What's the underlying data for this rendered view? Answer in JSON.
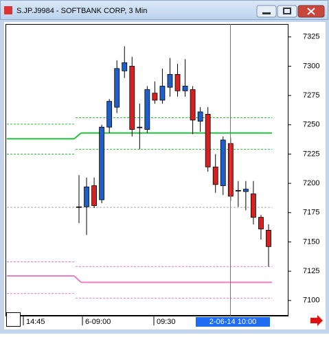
{
  "window": {
    "title": "S.JP.J9984 - SOFTBANK CORP, 3 Min"
  },
  "chart_data": {
    "type": "candlestick",
    "open": [
      7180,
      7180,
      7198,
      7186,
      7248,
      7265,
      7296,
      7300,
      7248,
      7246,
      7277,
      7271,
      7282,
      7293,
      7279,
      7280,
      7253,
      7259,
      7214,
      7198,
      7234,
      7194,
      7193,
      7191,
      7171,
      7160
    ],
    "high": [
      7207,
      7205,
      7205,
      7250,
      7272,
      7305,
      7317,
      7308,
      7268,
      7283,
      7287,
      7298,
      7307,
      7302,
      7306,
      7283,
      7265,
      7265,
      7225,
      7240,
      7239,
      7202,
      7202,
      7202,
      7173,
      7165
    ],
    "low": [
      7166,
      7156,
      7179,
      7183,
      7243,
      7260,
      7290,
      7240,
      7229,
      7243,
      7268,
      7268,
      7274,
      7274,
      7274,
      7242,
      7244,
      7210,
      7192,
      7190,
      7185,
      7180,
      7177,
      7165,
      7152,
      7129
    ],
    "close": [
      7180,
      7197,
      7181,
      7248,
      7270,
      7298,
      7303,
      7246,
      7248,
      7280,
      7271,
      7283,
      7293,
      7279,
      7283,
      7254,
      7261,
      7214,
      7199,
      7237,
      7189,
      7194,
      7195,
      7171,
      7161,
      7146
    ],
    "up_color": "#1f5fc8",
    "down_color": "#d42222",
    "levels": [
      {
        "color": "#22c33a",
        "style": "solid",
        "values": [
          7238,
          7243
        ]
      },
      {
        "color": "#22c33a",
        "style": "dashed",
        "values": [
          7250.5,
          7256
        ]
      },
      {
        "color": "#22c33a",
        "style": "dashed",
        "values": [
          7225,
          7229
        ]
      },
      {
        "color": "#aaaaaa",
        "style": "dashed",
        "values": [
          7179.5,
          7179.5
        ]
      },
      {
        "color": "#f07cc8",
        "style": "solid",
        "values": [
          7121,
          7115.5
        ]
      },
      {
        "color": "#f07cc8",
        "style": "dashed",
        "values": [
          7133,
          7129
        ]
      },
      {
        "color": "#f07cc8",
        "style": "dashed",
        "values": [
          7106,
          7102
        ]
      }
    ],
    "ylim": [
      7087,
      7336
    ],
    "yticks": [
      7100,
      7125,
      7150,
      7175,
      7200,
      7225,
      7250,
      7275,
      7300,
      7325
    ],
    "xticks": [
      "14:45",
      "6-09:00",
      "09:30"
    ],
    "crosshair_label": "2-06-14 10:00"
  }
}
